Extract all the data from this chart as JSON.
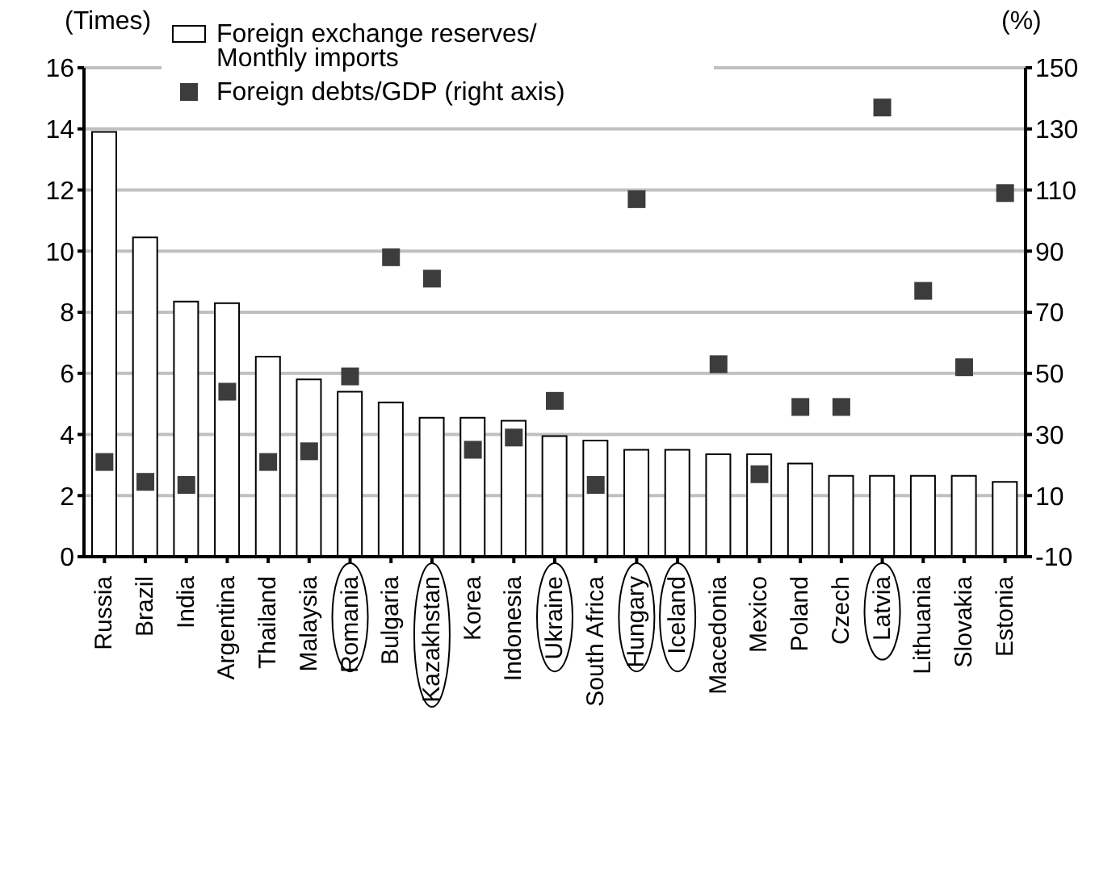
{
  "chart_data": {
    "type": "bar",
    "ylabel": "(Times)",
    "y2label": "(%)",
    "categories": [
      "Russia",
      "Brazil",
      "India",
      "Argentina",
      "Thailand",
      "Malaysia",
      "Romania",
      "Bulgaria",
      "Kazakhstan",
      "Korea",
      "Indonesia",
      "Ukraine",
      "South Africa",
      "Hungary",
      "Iceland",
      "Macedonia",
      "Mexico",
      "Poland",
      "Czech",
      "Latvia",
      "Lithuania",
      "Slovakia",
      "Estonia"
    ],
    "series": [
      {
        "name": "Foreign exchange reserves/ Monthly imports",
        "color": "#ffffff",
        "values": [
          13.9,
          10.45,
          8.35,
          8.3,
          6.55,
          5.8,
          5.4,
          5.05,
          4.55,
          4.55,
          4.45,
          3.95,
          3.8,
          3.5,
          3.5,
          3.35,
          3.35,
          3.05,
          2.65,
          2.65,
          2.65,
          2.65,
          2.45
        ]
      },
      {
        "name": "Foreign debts/GDP (right axis)",
        "type": "scatter",
        "axis": "y2",
        "color": "#3c3c3c",
        "values": [
          21,
          14.5,
          13.5,
          44,
          21,
          24.5,
          49,
          88,
          81,
          25,
          29,
          41,
          13.5,
          107,
          null,
          53,
          17,
          39,
          39,
          137,
          77,
          52,
          109
        ]
      }
    ],
    "ylim": [
      0,
      16
    ],
    "yticks": [
      0,
      2,
      4,
      6,
      8,
      10,
      12,
      14,
      16
    ],
    "y2lim": [
      -10,
      150
    ],
    "y2ticks": [
      -10,
      10,
      30,
      50,
      70,
      90,
      110,
      130,
      150
    ],
    "grid": "y",
    "legend": "top left",
    "marker": "square"
  }
}
